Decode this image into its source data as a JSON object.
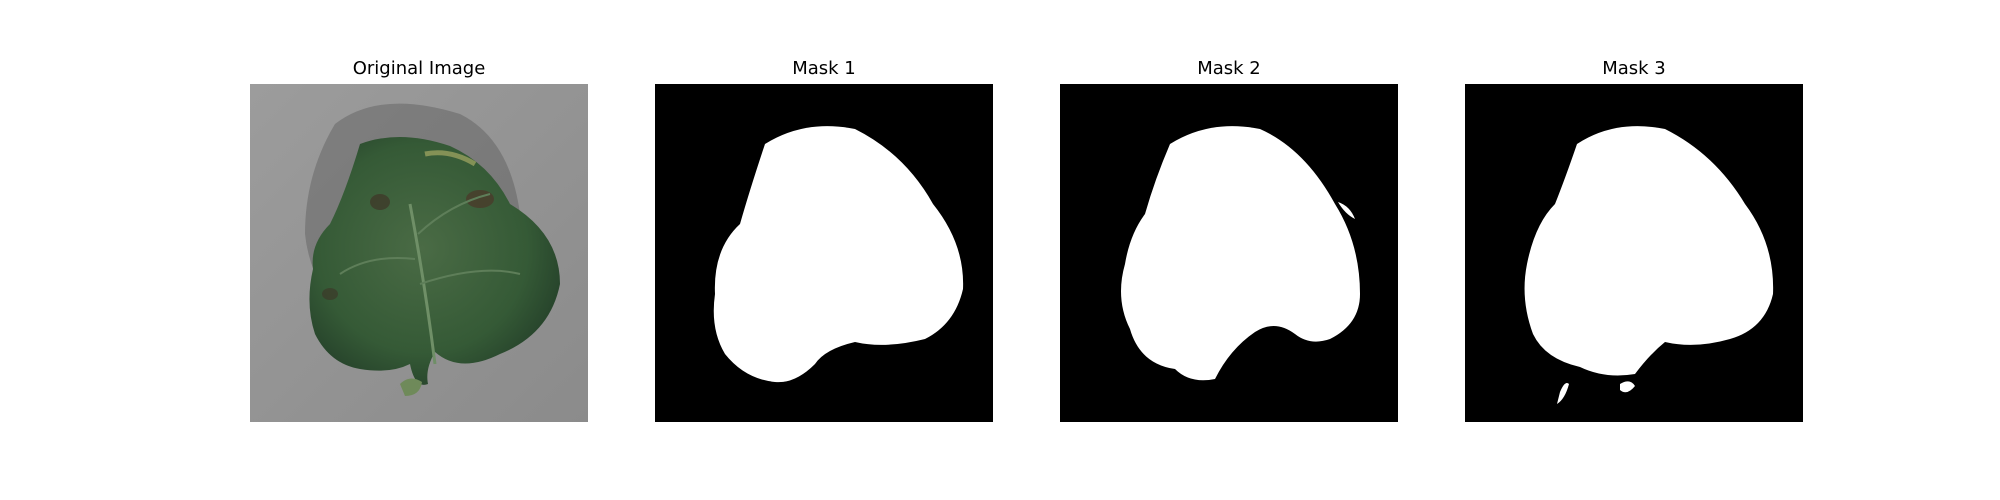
{
  "panels": [
    {
      "title": "Original Image",
      "kind": "photo",
      "subject": "leaf-on-gray-background"
    },
    {
      "title": "Mask 1",
      "kind": "mask"
    },
    {
      "title": "Mask 2",
      "kind": "mask"
    },
    {
      "title": "Mask 3",
      "kind": "mask"
    }
  ],
  "colors": {
    "background": "#9a9a9a",
    "leaf": "#3b5a3a",
    "mask_fg": "#ffffff",
    "mask_bg": "#000000"
  }
}
